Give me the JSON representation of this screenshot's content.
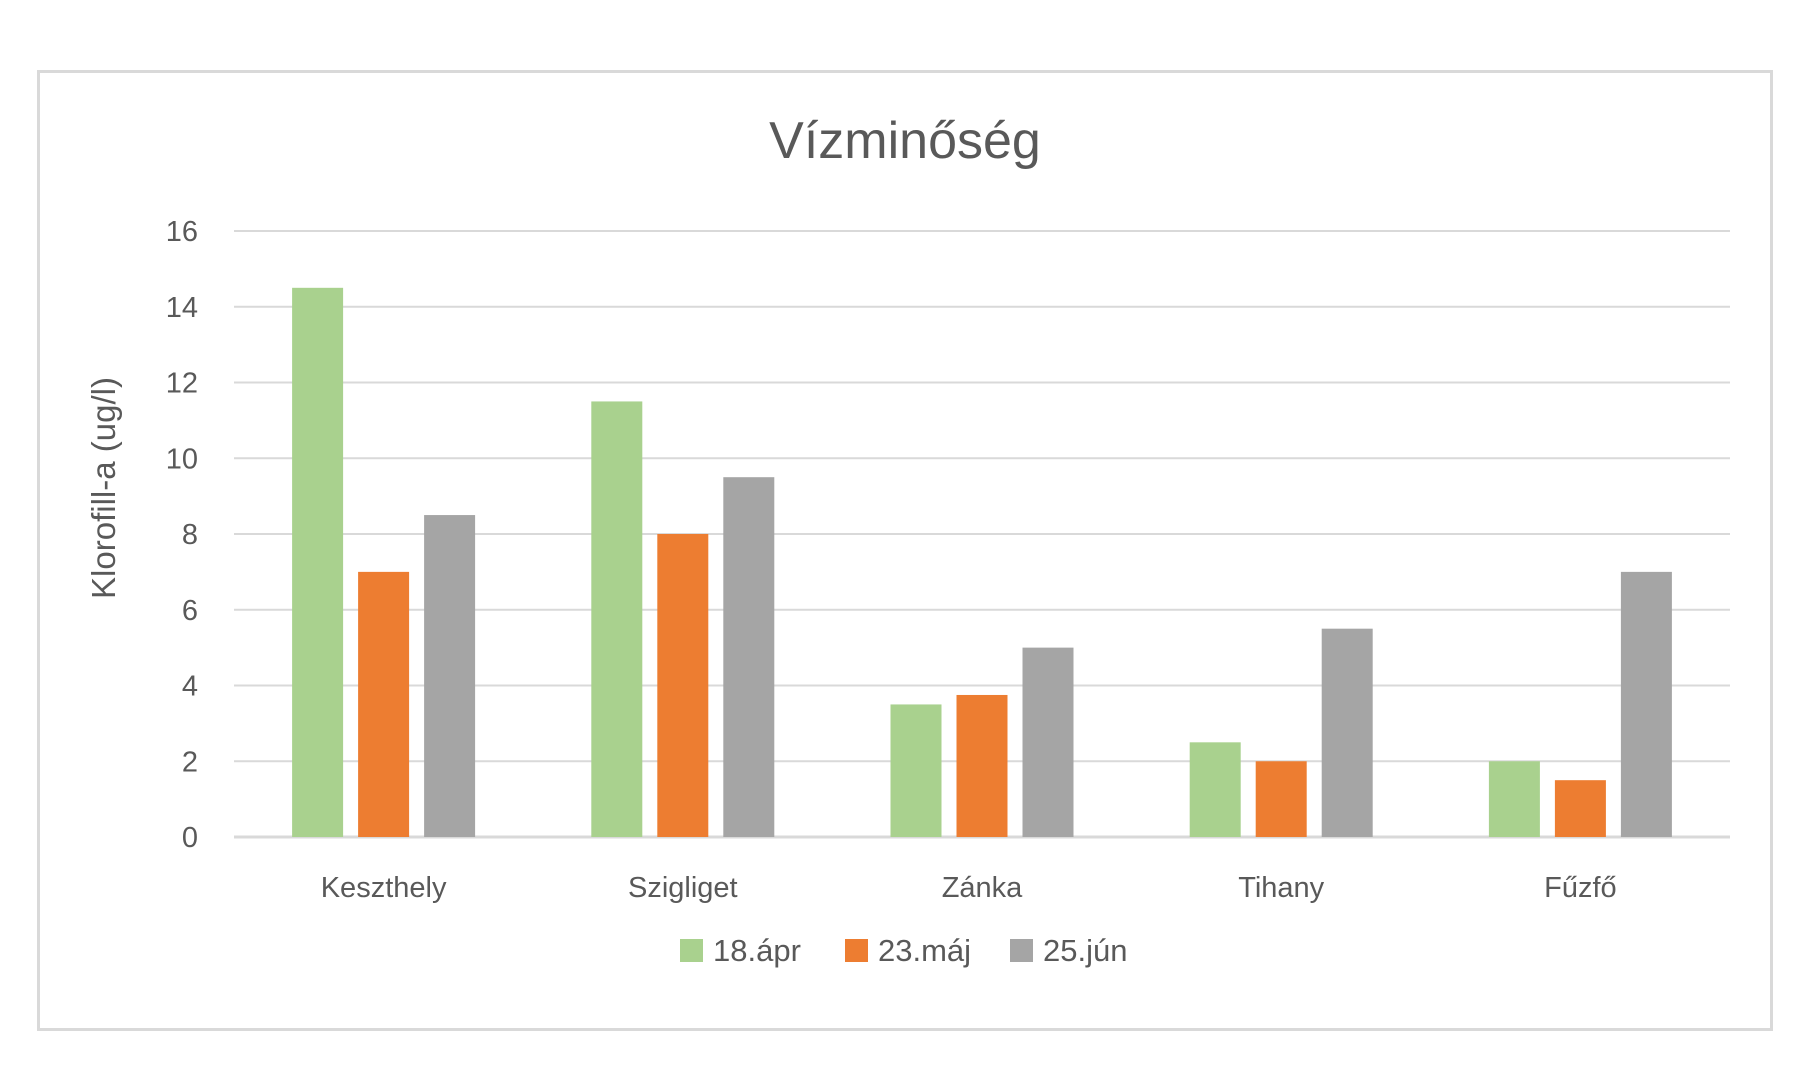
{
  "chart_data": {
    "type": "bar",
    "title": "Vízminőség",
    "xlabel": "",
    "ylabel": "Klorofill-a (ug/l)",
    "ylim": [
      0,
      16
    ],
    "yticks": [
      0,
      2,
      4,
      6,
      8,
      10,
      12,
      14,
      16
    ],
    "grid": true,
    "legend_position": "bottom",
    "categories": [
      "Keszthely",
      "Szigliget",
      "Zánka",
      "Tihany",
      "Fűzfő"
    ],
    "series": [
      {
        "name": "18.ápr",
        "color": "#a9d18e",
        "values": [
          14.5,
          11.5,
          3.5,
          2.5,
          2
        ]
      },
      {
        "name": "23.máj",
        "color": "#ed7d31",
        "values": [
          7,
          8,
          3.75,
          2,
          1.5
        ]
      },
      {
        "name": "25.jún",
        "color": "#a5a5a5",
        "values": [
          8.5,
          9.5,
          5,
          5.5,
          7
        ]
      }
    ]
  }
}
